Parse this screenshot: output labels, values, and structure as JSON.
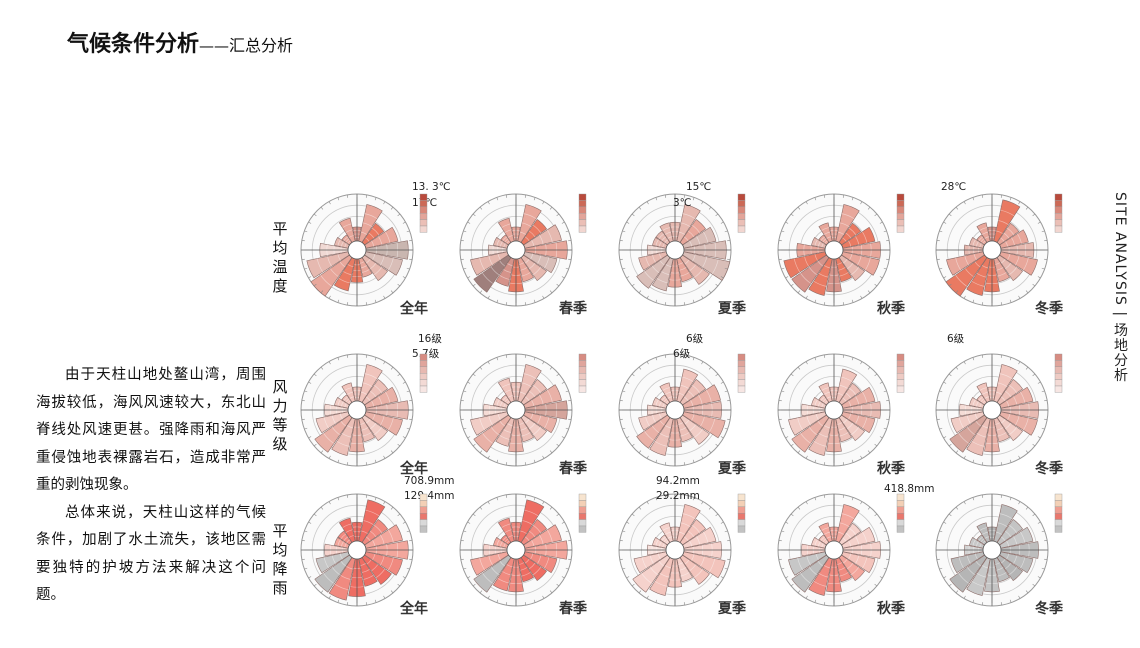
{
  "title": {
    "main": "气候条件分析",
    "separator": "——",
    "sub": "汇总分析"
  },
  "side_label": "SITE ANALYSIS | 场地分析",
  "body_text": {
    "p1": "由于天柱山地处鳌山湾，周围海拔较低，海风风速较大，东北山脊线处风速更甚。强降雨和海风严重侵蚀地表裸露岩石，造成非常严重的剥蚀现象。",
    "p2": "总体来说，天柱山这样的气候条件，加剧了水土流失，该地区需要独特的护坡方法来解决这个问题。"
  },
  "chart_data": [
    {
      "type": "rose",
      "row_label": "平均温度",
      "season": "全年",
      "annotations": [
        "13. 3℃",
        "17℃"
      ],
      "colors": [
        "#d5938a",
        "#e8a79b",
        "#e97a62",
        "#e8a79b",
        "#c9b6b0",
        "#d9beb8",
        "#e6b9b0",
        "#e8a79b",
        "#e97a62",
        "#e97a62",
        "#e8a79b",
        "#e6b9b0",
        "#f0d9d4",
        "#e6b9b0",
        "#e8a79b",
        "#e8a79b"
      ],
      "values": [
        3,
        8,
        5,
        7,
        9,
        8,
        6,
        4,
        5,
        7,
        10,
        9,
        6,
        3,
        2,
        5
      ]
    },
    {
      "type": "rose",
      "row_label": "平均温度",
      "season": "春季",
      "annotations": [],
      "colors": [
        "#e8a79b",
        "#e8a79b",
        "#e97a62",
        "#e6b9b0",
        "#e8a79b",
        "#d9beb8",
        "#e6b9b0",
        "#e8a79b",
        "#e97a62",
        "#d5938a",
        "#9f7f7c",
        "#e6b9b0",
        "#f0d9d4",
        "#e6b9b0",
        "#e8a79b",
        "#e8a79b"
      ],
      "values": [
        3,
        8,
        6,
        8,
        9,
        7,
        6,
        5,
        7,
        6,
        9,
        8,
        4,
        3,
        2,
        5
      ]
    },
    {
      "type": "rose",
      "row_label": "平均温度",
      "season": "夏季",
      "annotations": [
        "15℃",
        "3℃"
      ],
      "colors": [
        "#e6b9b0",
        "#e6b9b0",
        "#e8a79b",
        "#d9beb8",
        "#d9beb8",
        "#d9beb8",
        "#e6b9b0",
        "#e8a79b",
        "#e8a79b",
        "#d9beb8",
        "#d9beb8",
        "#e6b9b0",
        "#f0d9d4",
        "#e6b9b0",
        "#e6b9b0",
        "#e6b9b0"
      ],
      "values": [
        4,
        8,
        6,
        7,
        9,
        10,
        7,
        5,
        6,
        7,
        8,
        6,
        4,
        3,
        3,
        4
      ]
    },
    {
      "type": "rose",
      "row_label": "平均温度",
      "season": "秋季",
      "annotations": [],
      "colors": [
        "#e8a79b",
        "#e8a79b",
        "#e97a62",
        "#e97a62",
        "#e8a79b",
        "#e8a79b",
        "#e6b9b0",
        "#e97a62",
        "#d5938a",
        "#e97a62",
        "#d5938a",
        "#e97a62",
        "#e8a79b",
        "#e6b9b0",
        "#e8a79b",
        "#e8a79b"
      ],
      "values": [
        3,
        8,
        5,
        7,
        8,
        8,
        6,
        5,
        7,
        8,
        9,
        9,
        6,
        3,
        2,
        4
      ]
    },
    {
      "type": "rose",
      "row_label": "平均温度",
      "season": "冬季",
      "annotations": [
        "28℃"
      ],
      "colors": [
        "#d5938a",
        "#e97a62",
        "#e8a79b",
        "#e8a79b",
        "#e6b9b0",
        "#e8a79b",
        "#e6b9b0",
        "#e8a79b",
        "#e97a62",
        "#e97a62",
        "#e97a62",
        "#e8a79b",
        "#e6b9b0",
        "#e6b9b0",
        "#e8a79b",
        "#e8a79b"
      ],
      "values": [
        3,
        9,
        5,
        6,
        7,
        8,
        6,
        5,
        7,
        8,
        10,
        8,
        4,
        3,
        2,
        4
      ]
    },
    {
      "type": "rose",
      "row_label": "风力等级",
      "season": "全年",
      "annotations": [
        "16级",
        "5.7级"
      ],
      "colors": [
        "#f0c4bc",
        "#f0c4bc",
        "#ecc0b8",
        "#e9b1a7",
        "#e8bbb3",
        "#e9b1a7",
        "#f1cdc6",
        "#ecc0b8",
        "#e9b1a7",
        "#ecc0b8",
        "#e9b1a7",
        "#f1cdc6",
        "#f5dcd6",
        "#f1cdc6",
        "#f0c4bc",
        "#f0c4bc"
      ],
      "values": [
        3,
        8,
        6,
        7,
        9,
        8,
        6,
        5,
        7,
        8,
        9,
        7,
        5,
        3,
        2,
        4
      ]
    },
    {
      "type": "rose",
      "row_label": "风力等级",
      "season": "春季",
      "annotations": [],
      "colors": [
        "#f0c4bc",
        "#ecc0b8",
        "#ecc0b8",
        "#e9b1a7",
        "#d5a59c",
        "#e9b1a7",
        "#f1cdc6",
        "#ecc0b8",
        "#e9b1a7",
        "#ecc0b8",
        "#e9b1a7",
        "#f1cdc6",
        "#f5dcd6",
        "#f1cdc6",
        "#f0c4bc",
        "#f0c4bc"
      ],
      "values": [
        4,
        8,
        6,
        8,
        9,
        7,
        6,
        5,
        7,
        6,
        9,
        8,
        5,
        3,
        2,
        5
      ]
    },
    {
      "type": "rose",
      "row_label": "风力等级",
      "season": "夏季",
      "annotations": [
        "6级",
        "6级"
      ],
      "colors": [
        "#f0c4bc",
        "#f0c4bc",
        "#ecc0b8",
        "#e9b1a7",
        "#e8bbb3",
        "#e9b1a7",
        "#f1cdc6",
        "#ecc0b8",
        "#e9b1a7",
        "#ecc0b8",
        "#e9b1a7",
        "#f1cdc6",
        "#f5dcd6",
        "#f1cdc6",
        "#f0c4bc",
        "#f0c4bc"
      ],
      "values": [
        3,
        7,
        6,
        8,
        8,
        9,
        7,
        5,
        6,
        8,
        8,
        6,
        4,
        3,
        2,
        4
      ]
    },
    {
      "type": "rose",
      "row_label": "风力等级",
      "season": "秋季",
      "annotations": [],
      "colors": [
        "#f0c4bc",
        "#f0c4bc",
        "#ecc0b8",
        "#e9b1a7",
        "#e8bbb3",
        "#e9b1a7",
        "#f1cdc6",
        "#ecc0b8",
        "#e9b1a7",
        "#ecc0b8",
        "#e9b1a7",
        "#f1cdc6",
        "#f5dcd6",
        "#f1cdc6",
        "#f0c4bc",
        "#f0c4bc"
      ],
      "values": [
        3,
        7,
        5,
        7,
        8,
        7,
        6,
        5,
        7,
        8,
        9,
        8,
        5,
        3,
        2,
        4
      ]
    },
    {
      "type": "rose",
      "row_label": "风力等级",
      "season": "冬季",
      "annotations": [
        "6级"
      ],
      "colors": [
        "#f0c4bc",
        "#f0c4bc",
        "#ecc0b8",
        "#e9b1a7",
        "#e8bbb3",
        "#e9b1a7",
        "#f1cdc6",
        "#ecc0b8",
        "#e9b1a7",
        "#ecc0b8",
        "#d5a59c",
        "#f1cdc6",
        "#f5dcd6",
        "#f1cdc6",
        "#f0c4bc",
        "#f0c4bc"
      ],
      "values": [
        3,
        8,
        6,
        7,
        8,
        8,
        6,
        5,
        7,
        8,
        9,
        7,
        5,
        3,
        2,
        4
      ]
    },
    {
      "type": "rose",
      "row_label": "平均降雨",
      "season": "全年",
      "annotations": [
        "708.9mm",
        "129.4mm"
      ],
      "colors": [
        "#ee6d63",
        "#ee6d63",
        "#f08a80",
        "#f3a79d",
        "#f3a79d",
        "#f08a80",
        "#ee6d63",
        "#ee6d63",
        "#ee6d63",
        "#f08a80",
        "#bdbdbd",
        "#c7c7c7",
        "#f5d2cc",
        "#f3a79d",
        "#f08a80",
        "#ee6d63"
      ],
      "values": [
        4,
        9,
        6,
        8,
        9,
        8,
        7,
        6,
        8,
        9,
        9,
        7,
        5,
        3,
        3,
        5
      ]
    },
    {
      "type": "rose",
      "row_label": "平均降雨",
      "season": "春季",
      "annotations": [],
      "colors": [
        "#f08a80",
        "#ee6d63",
        "#f08a80",
        "#f3a79d",
        "#f3a79d",
        "#f08a80",
        "#ee6d63",
        "#ee6d63",
        "#f08a80",
        "#f08a80",
        "#bdbdbd",
        "#f3a79d",
        "#f5d2cc",
        "#f3a79d",
        "#f08a80",
        "#f08a80"
      ],
      "values": [
        4,
        9,
        6,
        8,
        9,
        7,
        6,
        5,
        7,
        7,
        9,
        8,
        5,
        3,
        2,
        5
      ]
    },
    {
      "type": "rose",
      "row_label": "平均降雨",
      "season": "夏季",
      "annotations": [
        "94.2mm",
        "29.2mm"
      ],
      "colors": [
        "#f5d2cc",
        "#f3c4bc",
        "#f3c4bc",
        "#f5d2cc",
        "#f5d2cc",
        "#f3c4bc",
        "#f3c4bc",
        "#f5d2cc",
        "#f3c4bc",
        "#f3c4bc",
        "#f5d2cc",
        "#f5d2cc",
        "#f8e3df",
        "#f5d2cc",
        "#f5d2cc",
        "#f5d2cc"
      ],
      "values": [
        3,
        8,
        6,
        7,
        8,
        9,
        7,
        5,
        6,
        8,
        9,
        7,
        4,
        3,
        2,
        4
      ]
    },
    {
      "type": "rose",
      "row_label": "平均降雨",
      "season": "秋季",
      "annotations": [
        "418.8mm"
      ],
      "colors": [
        "#f3a79d",
        "#f3a79d",
        "#f5d2cc",
        "#f5d2cc",
        "#f5d2cc",
        "#f3c4bc",
        "#f3a79d",
        "#f08a80",
        "#f08a80",
        "#f08a80",
        "#bdbdbd",
        "#c7c7c7",
        "#f5d2cc",
        "#f5d2cc",
        "#f3c4bc",
        "#f3a79d"
      ],
      "values": [
        3,
        8,
        5,
        7,
        8,
        7,
        6,
        5,
        7,
        8,
        9,
        8,
        5,
        3,
        2,
        4
      ]
    },
    {
      "type": "rose",
      "row_label": "平均降雨",
      "season": "冬季",
      "annotations": [],
      "colors": [
        "#b5b5b5",
        "#bdbdbd",
        "#c4c4c4",
        "#c8c8c8",
        "#bdbdbd",
        "#bdbdbd",
        "#b5b5b5",
        "#bdbdbd",
        "#c4c4c4",
        "#c8c8c8",
        "#b5b5b5",
        "#bdbdbd",
        "#d3d3d3",
        "#c8c8c8",
        "#bdbdbd",
        "#bdbdbd"
      ],
      "values": [
        3,
        8,
        6,
        7,
        8,
        7,
        6,
        5,
        7,
        8,
        9,
        7,
        4,
        3,
        2,
        4
      ]
    }
  ],
  "legend_palettes": {
    "temperature": [
      "#b94a3c",
      "#cc6a57",
      "#d9887a",
      "#e3a59a",
      "#ebbfb6",
      "#f2d6d0"
    ],
    "wind": [
      "#d78c82",
      "#e0a59c",
      "#e7b9b1",
      "#eecbc4",
      "#f3dad5",
      "#f7e6e3"
    ],
    "rain": [
      "#f7e4cf",
      "#f3d0b6",
      "#ef9e91",
      "#e9776d",
      "#d9d9d9",
      "#c2c2c2"
    ]
  }
}
